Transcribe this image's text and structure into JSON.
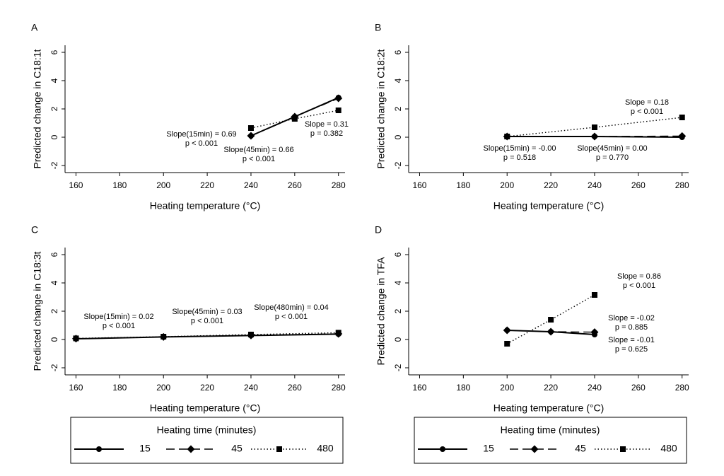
{
  "chart_data": [
    {
      "type": "line",
      "panel": "A",
      "ylabel": "Predicted change in C18:1t",
      "xlabel": "Heating temperature (°C)",
      "x": [
        240,
        260,
        280
      ],
      "xlim": [
        155,
        283
      ],
      "xticks": [
        160,
        180,
        200,
        220,
        240,
        260,
        280
      ],
      "ylim": [
        -2.5,
        6.5
      ],
      "yticks": [
        -2,
        0,
        2,
        4,
        6
      ],
      "series": [
        {
          "name": "15",
          "color": "#000000",
          "marker": "circle",
          "line": "solid",
          "values": [
            0.1,
            1.45,
            2.8
          ]
        },
        {
          "name": "45",
          "color": "#000000",
          "marker": "diamond",
          "line": "dashed",
          "values": [
            0.1,
            1.45,
            2.75
          ]
        },
        {
          "name": "480",
          "color": "#000000",
          "marker": "square",
          "line": "dotted",
          "values": [
            0.65,
            1.3,
            1.9
          ]
        }
      ],
      "annotations": [
        [
          "Slope(15min) = 0.69",
          "p < 0.001"
        ],
        [
          "Slope(45min) = 0.66",
          "p < 0.001"
        ],
        [
          "Slope = 0.31",
          "p = 0.382"
        ]
      ]
    },
    {
      "type": "line",
      "panel": "B",
      "ylabel": "Predicted change in C18:2t",
      "xlabel": "Heating temperature (°C)",
      "x": [
        200,
        240,
        280
      ],
      "xlim": [
        155,
        283
      ],
      "xticks": [
        160,
        180,
        200,
        220,
        240,
        260,
        280
      ],
      "ylim": [
        -2.5,
        6.5
      ],
      "yticks": [
        -2,
        0,
        2,
        4,
        6
      ],
      "series": [
        {
          "name": "15",
          "color": "#000000",
          "marker": "circle",
          "line": "solid",
          "values": [
            0.05,
            0.05,
            0.0
          ]
        },
        {
          "name": "45",
          "color": "#000000",
          "marker": "diamond",
          "line": "dashed",
          "values": [
            0.05,
            0.05,
            0.08
          ]
        },
        {
          "name": "480",
          "color": "#000000",
          "marker": "square",
          "line": "dotted",
          "values": [
            0.05,
            0.7,
            1.4
          ]
        }
      ],
      "annotations": [
        [
          "Slope = 0.18",
          "p < 0.001"
        ],
        [
          "Slope(15min) = -0.00",
          "p = 0.518"
        ],
        [
          "Slope(45min) = 0.00",
          "p = 0.770"
        ]
      ]
    },
    {
      "type": "line",
      "panel": "C",
      "ylabel": "Predicted change in C18:3t",
      "xlabel": "Heating temperature (°C)",
      "x": [
        160,
        200,
        240,
        280
      ],
      "xlim": [
        155,
        283
      ],
      "xticks": [
        160,
        180,
        200,
        220,
        240,
        260,
        280
      ],
      "ylim": [
        -2.5,
        6.5
      ],
      "yticks": [
        -2,
        0,
        2,
        4,
        6
      ],
      "series": [
        {
          "name": "15",
          "color": "#000000",
          "marker": "circle",
          "line": "solid",
          "values": [
            0.05,
            0.18,
            0.28,
            0.38
          ]
        },
        {
          "name": "45",
          "color": "#000000",
          "marker": "diamond",
          "line": "dashed",
          "values": [
            0.06,
            0.18,
            0.29,
            0.4
          ]
        },
        {
          "name": "480",
          "color": "#000000",
          "marker": "square",
          "line": "dotted",
          "values": [
            0.08,
            0.2,
            0.35,
            0.48
          ]
        }
      ],
      "annotations": [
        [
          "Slope(15min) = 0.02",
          "p < 0.001"
        ],
        [
          "Slope(45min) = 0.03",
          "p < 0.001"
        ],
        [
          "Slope(480min) = 0.04",
          "p < 0.001"
        ]
      ],
      "legend_title": "Heating time (minutes)"
    },
    {
      "type": "line",
      "panel": "D",
      "ylabel": "Predicted change in TFA",
      "xlabel": "Heating temperature (°C)",
      "x": [
        200,
        220,
        240
      ],
      "xlim": [
        155,
        283
      ],
      "xticks": [
        160,
        180,
        200,
        220,
        240,
        260,
        280
      ],
      "ylim": [
        -2.5,
        6.5
      ],
      "yticks": [
        -2,
        0,
        2,
        4,
        6
      ],
      "series": [
        {
          "name": "15",
          "color": "#000000",
          "marker": "circle",
          "line": "solid",
          "values": [
            0.65,
            0.55,
            0.35
          ]
        },
        {
          "name": "45",
          "color": "#000000",
          "marker": "diamond",
          "line": "dashed",
          "values": [
            0.65,
            0.55,
            0.52
          ]
        },
        {
          "name": "480",
          "color": "#000000",
          "marker": "square",
          "line": "dotted",
          "values": [
            -0.3,
            1.4,
            3.15
          ]
        }
      ],
      "annotations": [
        [
          "Slope = 0.86",
          "p < 0.001"
        ],
        [
          "Slope = -0.02",
          "p = 0.885"
        ],
        [
          "Slope = -0.01",
          "p = 0.625"
        ]
      ],
      "legend_title": "Heating time (minutes)"
    }
  ]
}
